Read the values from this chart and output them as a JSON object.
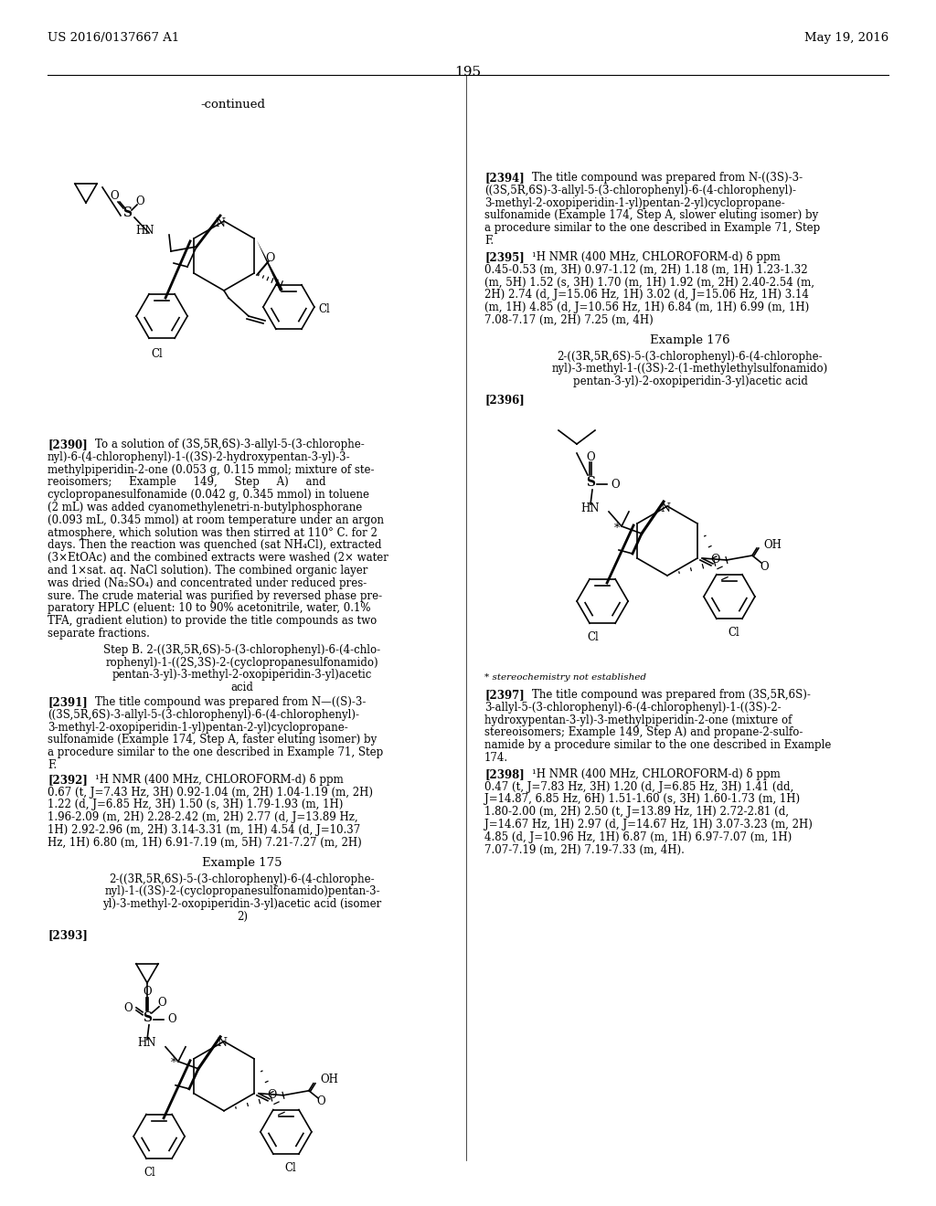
{
  "page_header_left": "US 2016/0137667 A1",
  "page_header_right": "May 19, 2016",
  "page_number": "195",
  "background_color": "#ffffff"
}
